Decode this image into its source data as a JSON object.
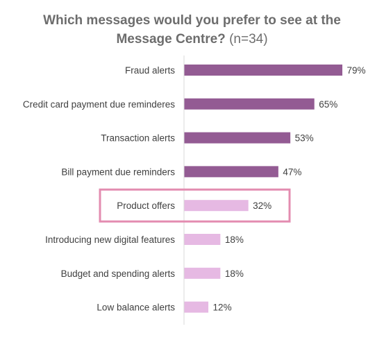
{
  "chart_data": {
    "type": "bar",
    "orientation": "horizontal",
    "title": "Which messages would you prefer to see at the Message Centre?",
    "title_line1": "Which messages would you prefer to see at the",
    "title_line2": "Message Centre?",
    "subtitle": "(n=34)",
    "categories": [
      "Fraud alerts",
      "Credit card payment due reminderes",
      "Transaction alerts",
      "Bill payment due reminders",
      "Product offers",
      "Introducing new digital features",
      "Budget and spending alerts",
      "Low balance alerts"
    ],
    "values": [
      79,
      65,
      53,
      47,
      32,
      18,
      18,
      12
    ],
    "value_labels": [
      "79%",
      "65%",
      "53%",
      "47%",
      "32%",
      "18%",
      "18%",
      "12%"
    ],
    "unit": "%",
    "xlim": [
      0,
      80
    ],
    "grid": false,
    "legend": "none",
    "highlighted_category": "Product offers",
    "colors": {
      "dark_bar": "#935b93",
      "light_bar": "#e6b9e3",
      "highlight_box": "#e38cb0",
      "axis": "#d9d9d9",
      "title": "#6d6d6d",
      "text": "#404040"
    },
    "dark_bar_count": 4
  }
}
